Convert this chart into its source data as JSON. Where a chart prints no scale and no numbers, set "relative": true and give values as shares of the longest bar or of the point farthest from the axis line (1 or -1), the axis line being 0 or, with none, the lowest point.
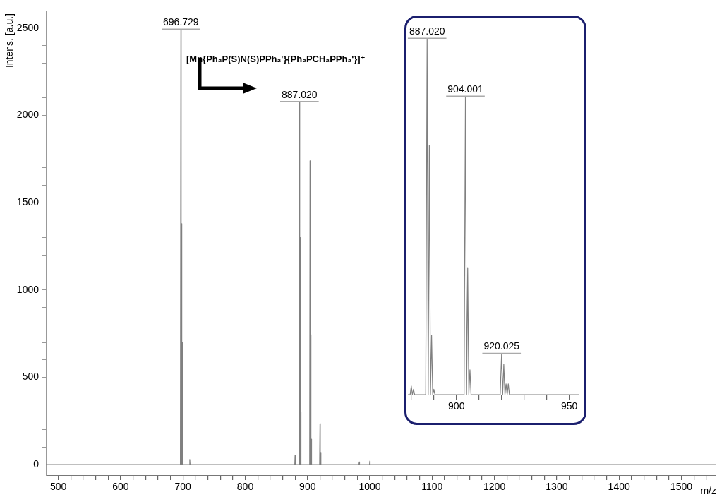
{
  "chart_data": [
    {
      "type": "line",
      "xlabel": "m/z",
      "ylabel": "Intens. [a.u.]",
      "xlim": [
        480,
        1555
      ],
      "ylim": [
        -60,
        2600
      ],
      "xticks": [
        500,
        {
          "value": 520,
          "label": null
        },
        {
          "value": 540,
          "label": null
        },
        {
          "value": 560,
          "label": null
        },
        {
          "value": 580,
          "label": null
        },
        600,
        {
          "value": 620,
          "label": null
        },
        {
          "value": 640,
          "label": null
        },
        {
          "value": 660,
          "label": null
        },
        {
          "value": 680,
          "label": null
        },
        700,
        {
          "value": 720,
          "label": null
        },
        {
          "value": 740,
          "label": null
        },
        {
          "value": 760,
          "label": null
        },
        {
          "value": 780,
          "label": null
        },
        800,
        {
          "value": 820,
          "label": null
        },
        {
          "value": 840,
          "label": null
        },
        {
          "value": 860,
          "label": null
        },
        {
          "value": 880,
          "label": null
        },
        900,
        {
          "value": 920,
          "label": null
        },
        {
          "value": 940,
          "label": null
        },
        {
          "value": 960,
          "label": null
        },
        {
          "value": 980,
          "label": null
        },
        1000,
        {
          "value": 1020,
          "label": null
        },
        {
          "value": 1040,
          "label": null
        },
        {
          "value": 1060,
          "label": null
        },
        {
          "value": 1080,
          "label": null
        },
        1100,
        {
          "value": 1120,
          "label": null
        },
        {
          "value": 1140,
          "label": null
        },
        {
          "value": 1160,
          "label": null
        },
        {
          "value": 1180,
          "label": null
        },
        1200,
        {
          "value": 1220,
          "label": null
        },
        {
          "value": 1240,
          "label": null
        },
        {
          "value": 1260,
          "label": null
        },
        {
          "value": 1280,
          "label": null
        },
        1300,
        {
          "value": 1320,
          "label": null
        },
        {
          "value": 1340,
          "label": null
        },
        {
          "value": 1360,
          "label": null
        },
        {
          "value": 1380,
          "label": null
        },
        1400,
        {
          "value": 1420,
          "label": null
        },
        {
          "value": 1440,
          "label": null
        },
        {
          "value": 1460,
          "label": null
        },
        {
          "value": 1480,
          "label": null
        },
        1500,
        {
          "value": 1520,
          "label": null
        },
        {
          "value": 1540,
          "label": null
        }
      ],
      "yticks": [
        0,
        {
          "value": 100,
          "label": null
        },
        {
          "value": 200,
          "label": null
        },
        {
          "value": 300,
          "label": null
        },
        {
          "value": 400,
          "label": null
        },
        500,
        {
          "value": 600,
          "label": null
        },
        {
          "value": 700,
          "label": null
        },
        {
          "value": 800,
          "label": null
        },
        {
          "value": 900,
          "label": null
        },
        1000,
        {
          "value": 1100,
          "label": null
        },
        {
          "value": 1200,
          "label": null
        },
        {
          "value": 1300,
          "label": null
        },
        {
          "value": 1400,
          "label": null
        },
        1500,
        {
          "value": 1600,
          "label": null
        },
        {
          "value": 1700,
          "label": null
        },
        {
          "value": 1800,
          "label": null
        },
        {
          "value": 1900,
          "label": null
        },
        2000,
        {
          "value": 2100,
          "label": null
        },
        {
          "value": 2200,
          "label": null
        },
        {
          "value": 2300,
          "label": null
        },
        {
          "value": 2400,
          "label": null
        },
        2500
      ],
      "grid": false,
      "legend": false,
      "marker": "none",
      "line_style": "solid",
      "series": [
        {
          "color": "#808080",
          "x": [
            480,
            695.9,
            696.729,
            697.2,
            697.7,
            698.2,
            698.7,
            699.2,
            699.7,
            700.2,
            710.5,
            711,
            711.5,
            879.5,
            880,
            880.5,
            886.4,
            887.02,
            887.5,
            888,
            888.5,
            889,
            889.5,
            903.4,
            904.001,
            904.5,
            905,
            905.5,
            906,
            906.5,
            919.4,
            920.025,
            920.5,
            921,
            921.5,
            982.5,
            983,
            983.5,
            999.5,
            1000,
            1000.5,
            1555
          ],
          "values": [
            0,
            0,
            2490,
            0,
            1380,
            0,
            700,
            0,
            50,
            0,
            0,
            30,
            0,
            0,
            53,
            0,
            0,
            2075,
            0,
            1300,
            0,
            300,
            0,
            0,
            1740,
            0,
            744,
            0,
            146,
            0,
            0,
            235,
            0,
            70,
            0,
            0,
            15,
            0,
            0,
            20,
            0,
            0
          ]
        }
      ],
      "annotations": [
        {
          "text": "696.729",
          "x": 696.729,
          "y": 2490
        },
        {
          "text": "887.020",
          "x": 887.02,
          "y": 2075
        },
        "[Mn{Ph₂P(S)N(S)PPh₂'}{Ph₂PCH₂PPh₂'}]⁺"
      ]
    },
    {
      "type": "line",
      "relative": true,
      "xlim": [
        878.5,
        954.5
      ],
      "xticks": [
        {
          "value": 880,
          "label": null
        },
        {
          "value": 890,
          "label": null
        },
        900,
        {
          "value": 910,
          "label": null
        },
        {
          "value": 920,
          "label": null
        },
        {
          "value": 930,
          "label": null
        },
        {
          "value": 940,
          "label": null
        },
        950
      ],
      "grid": false,
      "legend": false,
      "marker": "none",
      "line_style": "solid",
      "series": [
        {
          "color": "#808080",
          "x": [
            878.5,
            879.5,
            880,
            880.5,
            881,
            881.5,
            886.4,
            887.02,
            887.5,
            888,
            888.5,
            889,
            889.5,
            890,
            890.5,
            903.4,
            904.001,
            904.5,
            905,
            905.5,
            906,
            906.5,
            919.4,
            920.025,
            920.5,
            921,
            921.5,
            922,
            922.5,
            923,
            923.5,
            954.5
          ],
          "values": [
            0,
            0,
            0.024,
            0,
            0.015,
            0,
            0,
            1,
            0,
            0.7,
            0,
            0.167,
            0,
            0.015,
            0,
            0,
            0.837,
            0,
            0.357,
            0,
            0.07,
            0,
            0,
            0.114,
            0,
            0.085,
            0,
            0.03,
            0,
            0.03,
            0,
            0
          ]
        }
      ],
      "annotations": [
        {
          "text": "887.020",
          "x": 887.02,
          "y": 1
        },
        {
          "text": "904.001",
          "x": 904.001,
          "y": 0.837
        },
        {
          "text": "920.025",
          "x": 920.025,
          "y": 0.114
        }
      ]
    }
  ]
}
